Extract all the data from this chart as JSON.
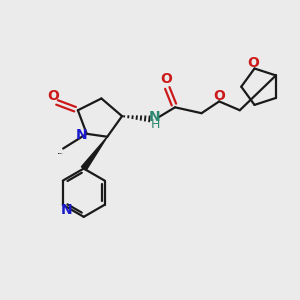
{
  "bg_color": "#ebebeb",
  "bond_color": "#1a1a1a",
  "N_color": "#1a1acc",
  "O_color": "#cc1a1a",
  "NH_color": "#2d8870",
  "lw": 1.6,
  "figsize": [
    3.0,
    3.0
  ],
  "dpi": 100,
  "xlim": [
    0,
    10
  ],
  "ylim": [
    0,
    10
  ]
}
